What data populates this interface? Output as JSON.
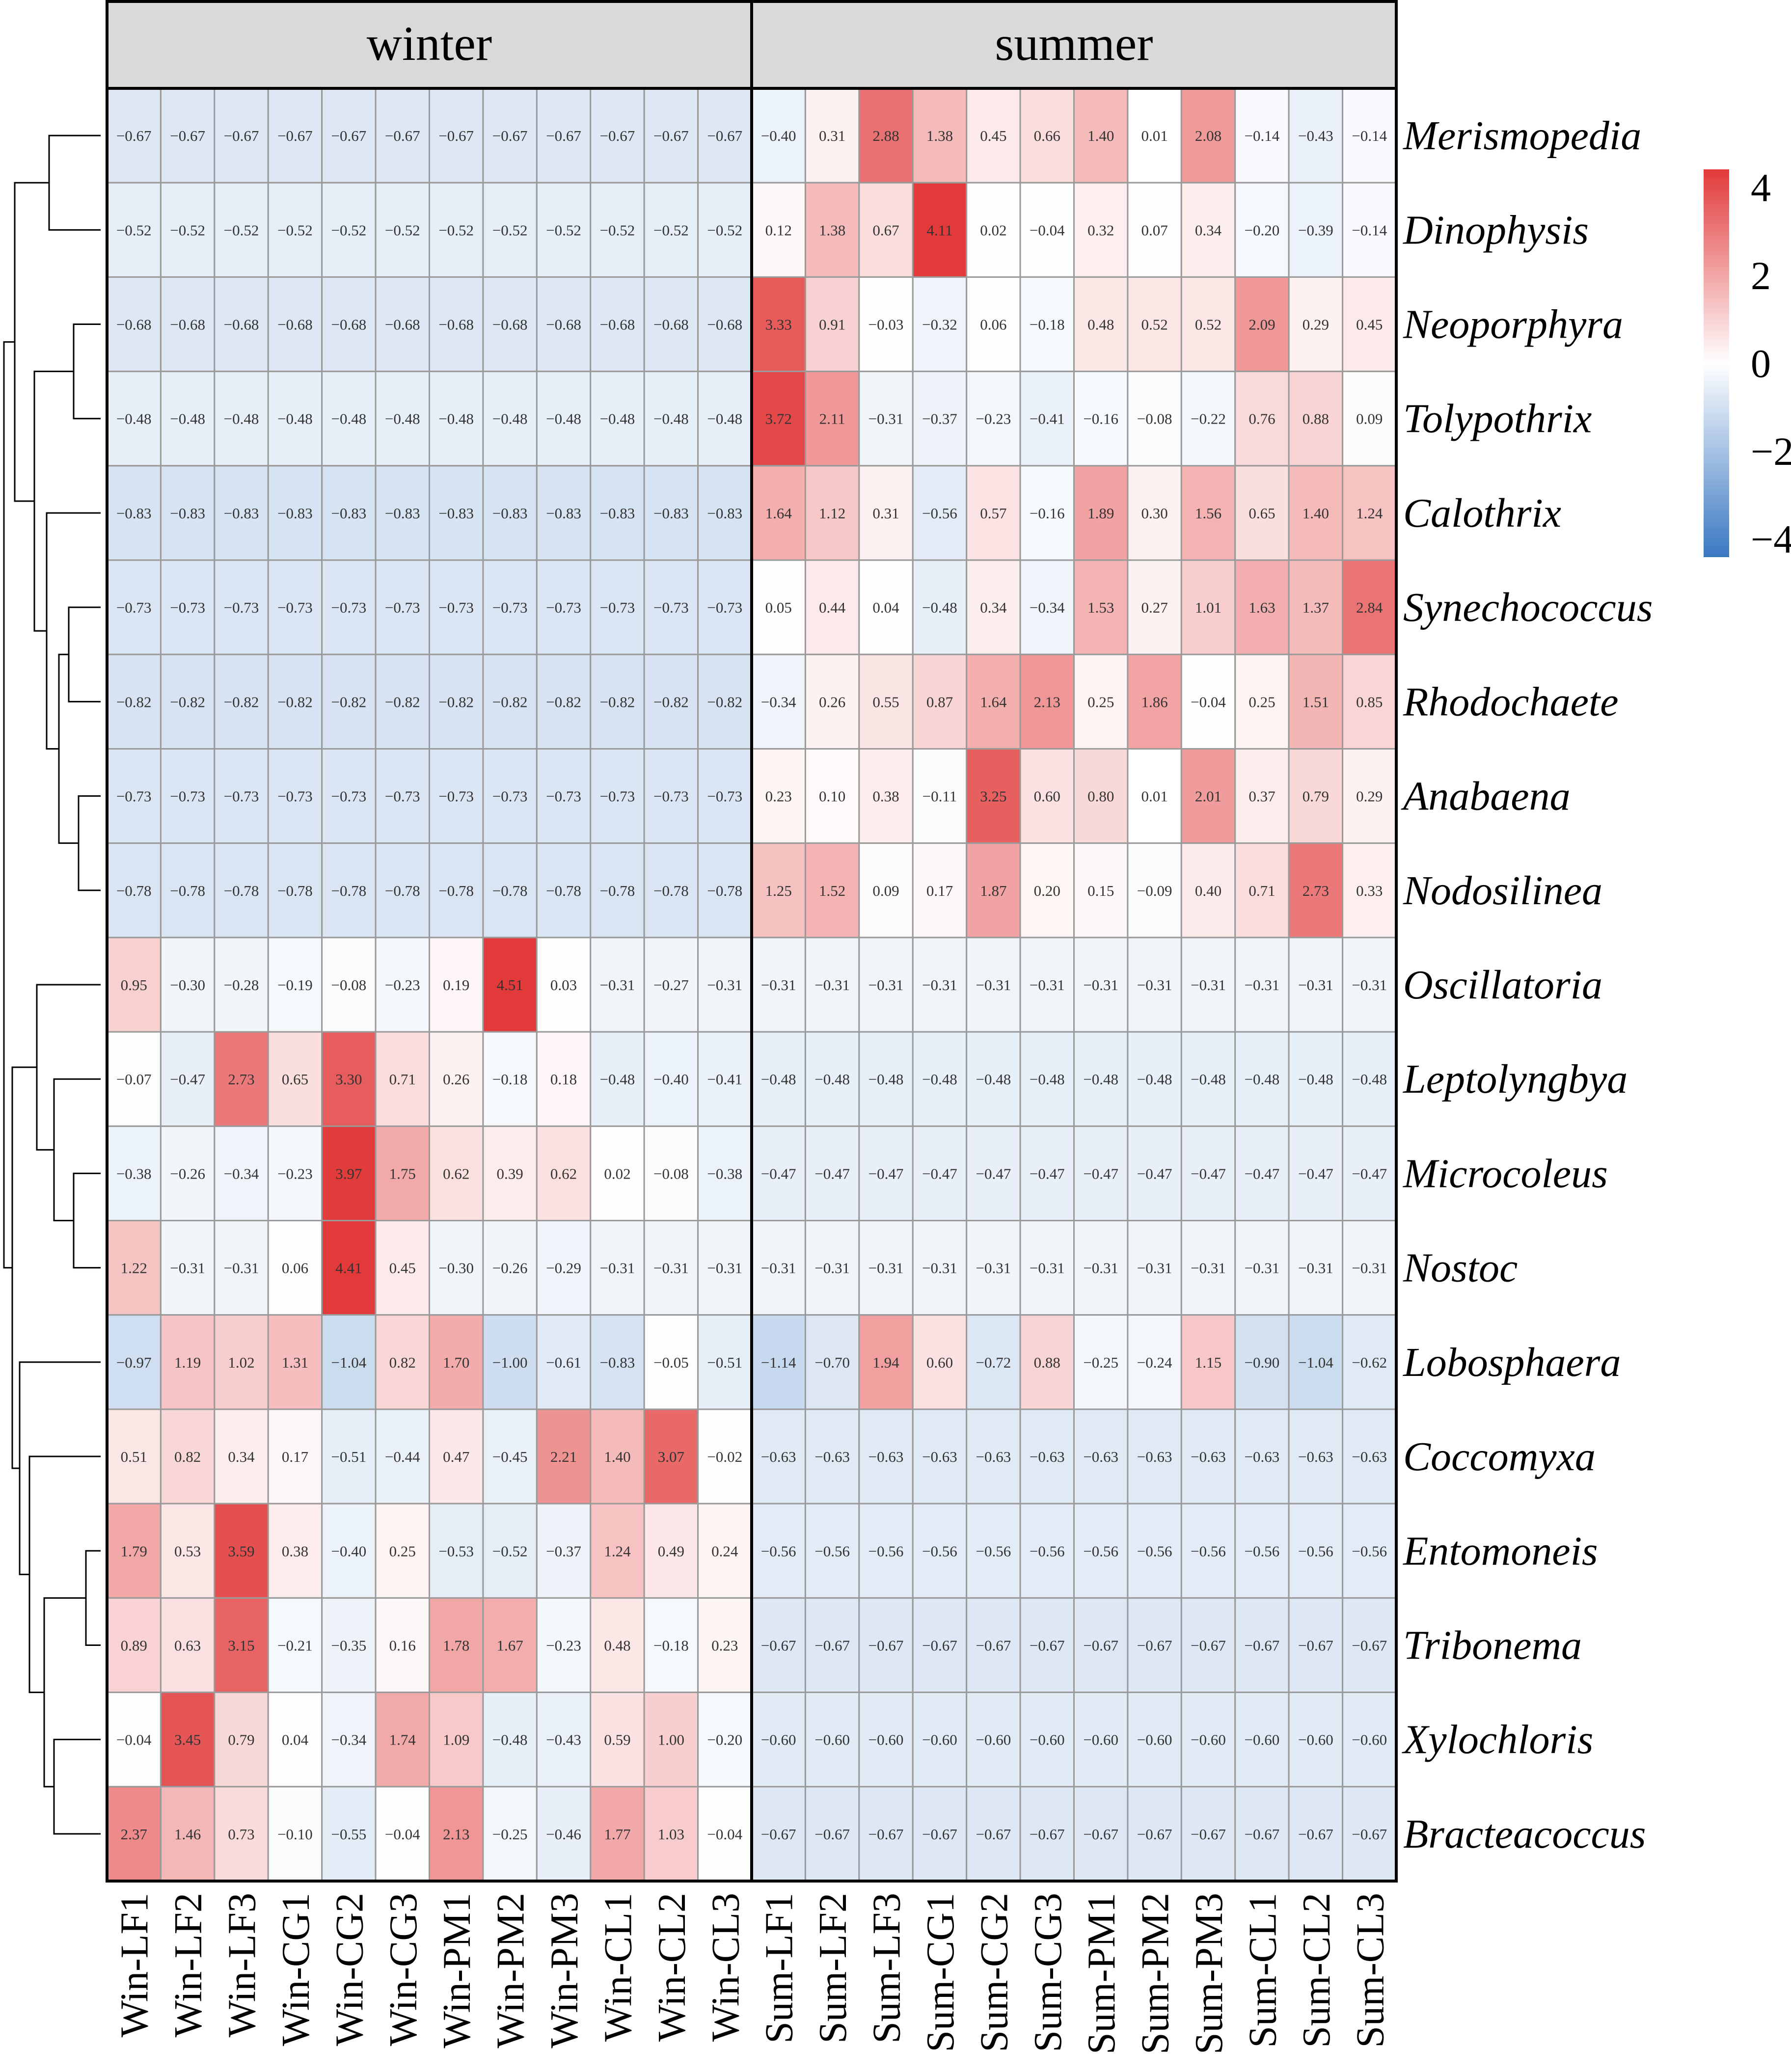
{
  "chart_data": {
    "type": "heatmap",
    "facets": [
      "winter",
      "summer"
    ],
    "columns": [
      "Win-LF1",
      "Win-LF2",
      "Win-LF3",
      "Win-CG1",
      "Win-CG2",
      "Win-CG3",
      "Win-PM1",
      "Win-PM2",
      "Win-PM3",
      "Win-CL1",
      "Win-CL2",
      "Win-CL3",
      "Sum-LF1",
      "Sum-LF2",
      "Sum-LF3",
      "Sum-CG1",
      "Sum-CG2",
      "Sum-CG3",
      "Sum-PM1",
      "Sum-PM2",
      "Sum-PM3",
      "Sum-CL1",
      "Sum-CL2",
      "Sum-CL3"
    ],
    "rows": [
      "Merismopedia",
      "Dinophysis",
      "Neoporphyra",
      "Tolypothrix",
      "Calothrix",
      "Synechococcus",
      "Rhodochaete",
      "Anabaena",
      "Nodosilinea",
      "Oscillatoria",
      "Leptolyngbya",
      "Microcoleus",
      "Nostoc",
      "Lobosphaera",
      "Coccomyxa",
      "Entomoneis",
      "Tribonema",
      "Xylochloris",
      "Bracteacoccus"
    ],
    "values": [
      [
        -0.67,
        -0.67,
        -0.67,
        -0.67,
        -0.67,
        -0.67,
        -0.67,
        -0.67,
        -0.67,
        -0.67,
        -0.67,
        -0.67,
        -0.4,
        0.31,
        2.88,
        1.38,
        0.45,
        0.66,
        1.4,
        0.01,
        2.08,
        -0.14,
        -0.43,
        -0.14
      ],
      [
        -0.52,
        -0.52,
        -0.52,
        -0.52,
        -0.52,
        -0.52,
        -0.52,
        -0.52,
        -0.52,
        -0.52,
        -0.52,
        -0.52,
        0.12,
        1.38,
        0.67,
        4.11,
        0.02,
        -0.04,
        0.32,
        0.07,
        0.34,
        -0.2,
        -0.39,
        -0.14
      ],
      [
        -0.68,
        -0.68,
        -0.68,
        -0.68,
        -0.68,
        -0.68,
        -0.68,
        -0.68,
        -0.68,
        -0.68,
        -0.68,
        -0.68,
        3.33,
        0.91,
        -0.03,
        -0.32,
        0.06,
        -0.18,
        0.48,
        0.52,
        0.52,
        2.09,
        0.29,
        0.45
      ],
      [
        -0.48,
        -0.48,
        -0.48,
        -0.48,
        -0.48,
        -0.48,
        -0.48,
        -0.48,
        -0.48,
        -0.48,
        -0.48,
        -0.48,
        3.72,
        2.11,
        -0.31,
        -0.37,
        -0.23,
        -0.41,
        -0.16,
        -0.08,
        -0.22,
        0.76,
        0.88,
        0.09
      ],
      [
        -0.83,
        -0.83,
        -0.83,
        -0.83,
        -0.83,
        -0.83,
        -0.83,
        -0.83,
        -0.83,
        -0.83,
        -0.83,
        -0.83,
        1.64,
        1.12,
        0.31,
        -0.56,
        0.57,
        -0.16,
        1.89,
        0.3,
        1.56,
        0.65,
        1.4,
        1.24
      ],
      [
        -0.73,
        -0.73,
        -0.73,
        -0.73,
        -0.73,
        -0.73,
        -0.73,
        -0.73,
        -0.73,
        -0.73,
        -0.73,
        -0.73,
        0.05,
        0.44,
        0.04,
        -0.48,
        0.34,
        -0.34,
        1.53,
        0.27,
        1.01,
        1.63,
        1.37,
        2.84
      ],
      [
        -0.82,
        -0.82,
        -0.82,
        -0.82,
        -0.82,
        -0.82,
        -0.82,
        -0.82,
        -0.82,
        -0.82,
        -0.82,
        -0.82,
        -0.34,
        0.26,
        0.55,
        0.87,
        1.64,
        2.13,
        0.25,
        1.86,
        -0.04,
        0.25,
        1.51,
        0.85
      ],
      [
        -0.73,
        -0.73,
        -0.73,
        -0.73,
        -0.73,
        -0.73,
        -0.73,
        -0.73,
        -0.73,
        -0.73,
        -0.73,
        -0.73,
        0.23,
        0.1,
        0.38,
        -0.11,
        3.25,
        0.6,
        0.8,
        0.01,
        2.01,
        0.37,
        0.79,
        0.29
      ],
      [
        -0.78,
        -0.78,
        -0.78,
        -0.78,
        -0.78,
        -0.78,
        -0.78,
        -0.78,
        -0.78,
        -0.78,
        -0.78,
        -0.78,
        1.25,
        1.52,
        0.09,
        0.17,
        1.87,
        0.2,
        0.15,
        -0.09,
        0.4,
        0.71,
        2.73,
        0.33
      ],
      [
        0.95,
        -0.3,
        -0.28,
        -0.19,
        -0.08,
        -0.23,
        0.19,
        4.51,
        0.03,
        -0.31,
        -0.27,
        -0.31,
        -0.31,
        -0.31,
        -0.31,
        -0.31,
        -0.31,
        -0.31,
        -0.31,
        -0.31,
        -0.31,
        -0.31,
        -0.31,
        -0.31
      ],
      [
        -0.07,
        -0.47,
        2.73,
        0.65,
        3.3,
        0.71,
        0.26,
        -0.18,
        0.18,
        -0.48,
        -0.4,
        -0.41,
        -0.48,
        -0.48,
        -0.48,
        -0.48,
        -0.48,
        -0.48,
        -0.48,
        -0.48,
        -0.48,
        -0.48,
        -0.48,
        -0.48
      ],
      [
        -0.38,
        -0.26,
        -0.34,
        -0.23,
        3.97,
        1.75,
        0.62,
        0.39,
        0.62,
        0.02,
        -0.08,
        -0.38,
        -0.47,
        -0.47,
        -0.47,
        -0.47,
        -0.47,
        -0.47,
        -0.47,
        -0.47,
        -0.47,
        -0.47,
        -0.47,
        -0.47
      ],
      [
        1.22,
        -0.31,
        -0.31,
        0.06,
        4.41,
        0.45,
        -0.3,
        -0.26,
        -0.29,
        -0.31,
        -0.31,
        -0.31,
        -0.31,
        -0.31,
        -0.31,
        -0.31,
        -0.31,
        -0.31,
        -0.31,
        -0.31,
        -0.31,
        -0.31,
        -0.31,
        -0.31
      ],
      [
        -0.97,
        1.19,
        1.02,
        1.31,
        -1.04,
        0.82,
        1.7,
        -1.0,
        -0.61,
        -0.83,
        -0.05,
        -0.51,
        -1.14,
        -0.7,
        1.94,
        0.6,
        -0.72,
        0.88,
        -0.25,
        -0.24,
        1.15,
        -0.9,
        -1.04,
        -0.62
      ],
      [
        0.51,
        0.82,
        0.34,
        0.17,
        -0.51,
        -0.44,
        0.47,
        -0.45,
        2.21,
        1.4,
        3.07,
        -0.02,
        -0.63,
        -0.63,
        -0.63,
        -0.63,
        -0.63,
        -0.63,
        -0.63,
        -0.63,
        -0.63,
        -0.63,
        -0.63,
        -0.63
      ],
      [
        1.79,
        0.53,
        3.59,
        0.38,
        -0.4,
        0.25,
        -0.53,
        -0.52,
        -0.37,
        1.24,
        0.49,
        0.24,
        -0.56,
        -0.56,
        -0.56,
        -0.56,
        -0.56,
        -0.56,
        -0.56,
        -0.56,
        -0.56,
        -0.56,
        -0.56,
        -0.56
      ],
      [
        0.89,
        0.63,
        3.15,
        -0.21,
        -0.35,
        0.16,
        1.78,
        1.67,
        -0.23,
        0.48,
        -0.18,
        0.23,
        -0.67,
        -0.67,
        -0.67,
        -0.67,
        -0.67,
        -0.67,
        -0.67,
        -0.67,
        -0.67,
        -0.67,
        -0.67,
        -0.67
      ],
      [
        -0.04,
        3.45,
        0.79,
        0.04,
        -0.34,
        1.74,
        1.09,
        -0.48,
        -0.43,
        0.59,
        1.0,
        -0.2,
        -0.6,
        -0.6,
        -0.6,
        -0.6,
        -0.6,
        -0.6,
        -0.6,
        -0.6,
        -0.6,
        -0.6,
        -0.6,
        -0.6
      ],
      [
        2.37,
        1.46,
        0.73,
        -0.1,
        -0.55,
        -0.04,
        2.13,
        -0.25,
        -0.46,
        1.77,
        1.03,
        -0.04,
        -0.67,
        -0.67,
        -0.67,
        -0.67,
        -0.67,
        -0.67,
        -0.67,
        -0.67,
        -0.67,
        -0.67,
        -0.67,
        -0.67
      ]
    ],
    "color_scale": {
      "min": -4,
      "max": 4,
      "low": "#3a78c2",
      "mid": "#ffffff",
      "high": "#e23a3a"
    },
    "legend_ticks": [
      "4",
      "2",
      "0",
      "−2",
      "−4"
    ],
    "row_dendrogram": true,
    "facet_header_color": "#d9d9d9"
  }
}
